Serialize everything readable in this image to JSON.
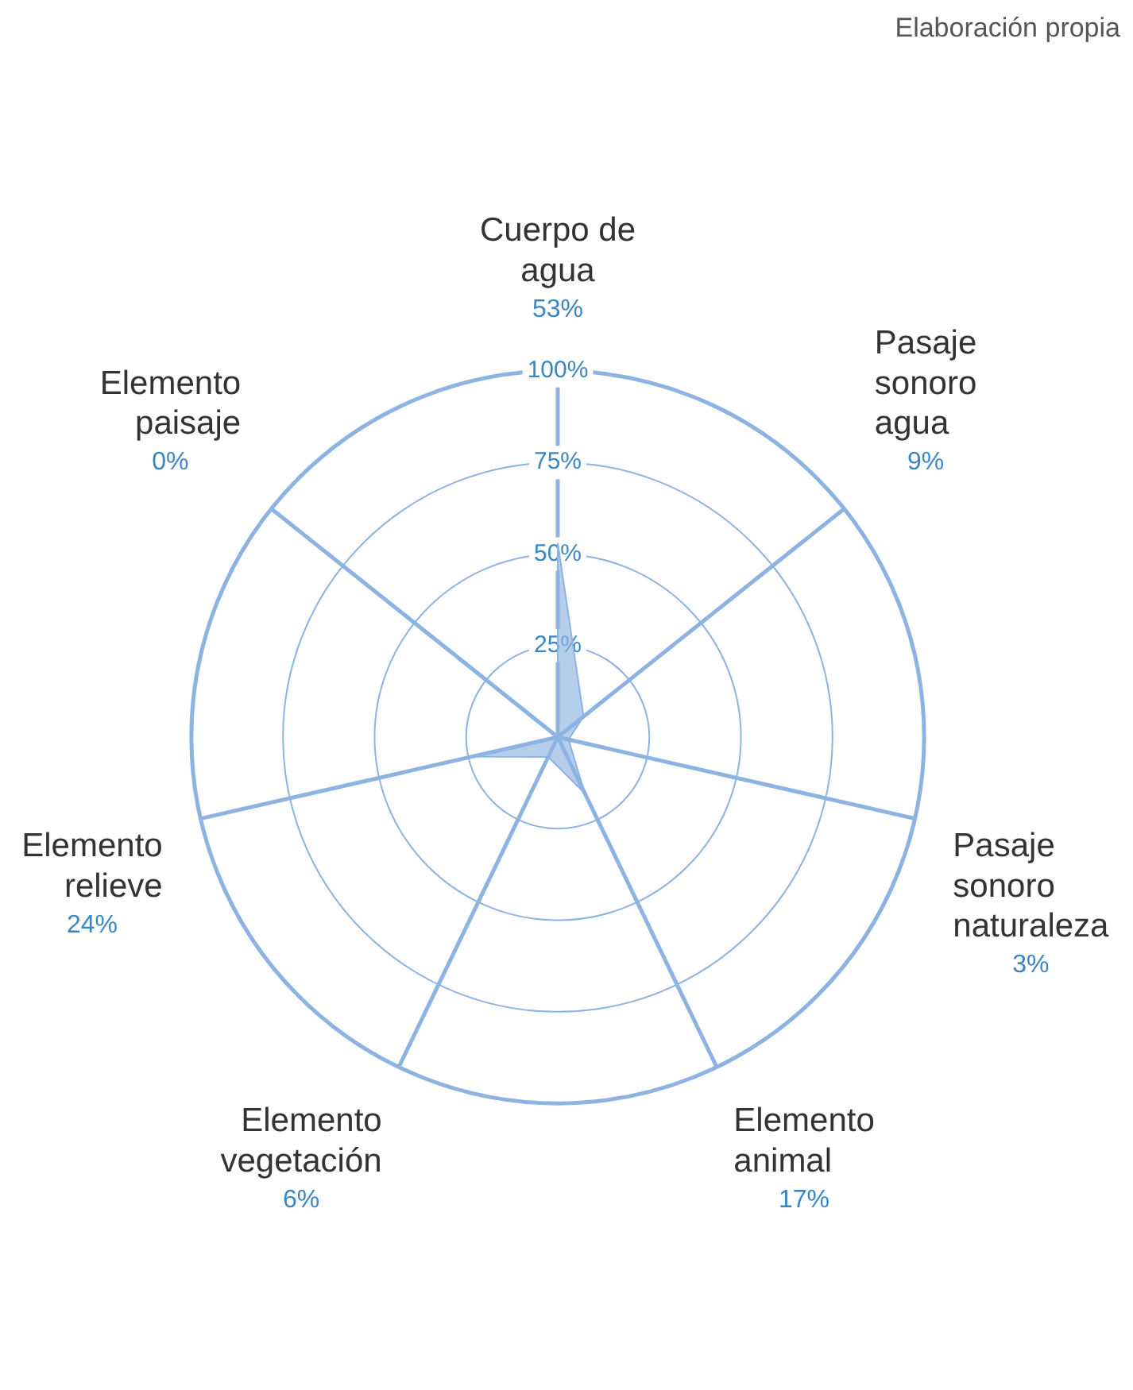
{
  "chart_data": {
    "type": "radar",
    "categories": [
      "Cuerpo de agua",
      "Pasaje sonoro agua",
      "Pasaje sonoro naturaleza",
      "Elemento animal",
      "Elemento vegetación",
      "Elemento relieve",
      "Elemento paisaje"
    ],
    "series": [
      {
        "color": "#8db3e2",
        "values": [
          53,
          9,
          3,
          17,
          6,
          24,
          0
        ]
      }
    ],
    "value_labels": [
      "53%",
      "9%",
      "3%",
      "17%",
      "6%",
      "24%",
      "0%"
    ],
    "ylim": [
      0,
      100
    ],
    "yticks": [
      {
        "value": 25,
        "label": "25%"
      },
      {
        "value": 50,
        "label": "50%"
      },
      {
        "value": 75,
        "label": "75%"
      },
      {
        "value": 100,
        "label": "100%"
      }
    ],
    "grid": true,
    "legend": false,
    "annotations": [
      "Elaboración propia"
    ]
  }
}
